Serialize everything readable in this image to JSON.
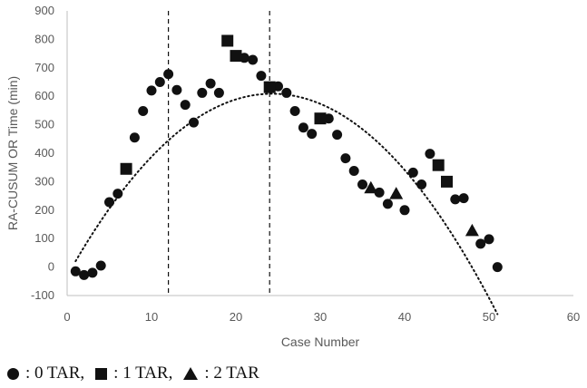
{
  "chart_data": {
    "type": "scatter",
    "title": "",
    "xlabel": "Case Number",
    "ylabel": "RA-CUSUM OR Time (min)",
    "xlim": [
      0,
      60
    ],
    "ylim": [
      -100,
      900
    ],
    "x_ticks": [
      0,
      10,
      20,
      30,
      40,
      50,
      60
    ],
    "y_ticks": [
      -100,
      0,
      100,
      200,
      300,
      400,
      500,
      600,
      700,
      800,
      900
    ],
    "grid": false,
    "vertical_lines": [
      12,
      24
    ],
    "trendline": {
      "style": "dotted",
      "type": "polynomial",
      "coefficients": [
        -31,
        52.7,
        -1.085
      ]
    },
    "series": [
      {
        "name": ": 0 TAR,",
        "marker": "circle",
        "points": [
          [
            1,
            -15
          ],
          [
            2,
            -28
          ],
          [
            3,
            -20
          ],
          [
            4,
            5
          ],
          [
            5,
            228
          ],
          [
            6,
            258
          ],
          [
            8,
            455
          ],
          [
            9,
            548
          ],
          [
            10,
            620
          ],
          [
            11,
            650
          ],
          [
            12,
            678
          ],
          [
            13,
            622
          ],
          [
            14,
            570
          ],
          [
            15,
            508
          ],
          [
            16,
            612
          ],
          [
            17,
            645
          ],
          [
            18,
            612
          ],
          [
            20,
            740
          ],
          [
            21,
            735
          ],
          [
            22,
            728
          ],
          [
            23,
            672
          ],
          [
            25,
            635
          ],
          [
            26,
            612
          ],
          [
            27,
            548
          ],
          [
            28,
            490
          ],
          [
            29,
            468
          ],
          [
            31,
            522
          ],
          [
            32,
            465
          ],
          [
            33,
            382
          ],
          [
            34,
            338
          ],
          [
            35,
            290
          ],
          [
            37,
            262
          ],
          [
            38,
            222
          ],
          [
            40,
            200
          ],
          [
            41,
            332
          ],
          [
            42,
            290
          ],
          [
            43,
            398
          ],
          [
            46,
            238
          ],
          [
            47,
            242
          ],
          [
            49,
            82
          ],
          [
            50,
            98
          ],
          [
            51,
            0
          ]
        ]
      },
      {
        "name": ": 1 TAR,",
        "marker": "square",
        "points": [
          [
            7,
            345
          ],
          [
            19,
            795
          ],
          [
            20,
            742
          ],
          [
            24,
            632
          ],
          [
            30,
            522
          ],
          [
            44,
            358
          ],
          [
            45,
            300
          ]
        ]
      },
      {
        "name": ": 2 TAR",
        "marker": "triangle",
        "points": [
          [
            36,
            278
          ],
          [
            39,
            258
          ],
          [
            48,
            128
          ]
        ]
      }
    ]
  }
}
